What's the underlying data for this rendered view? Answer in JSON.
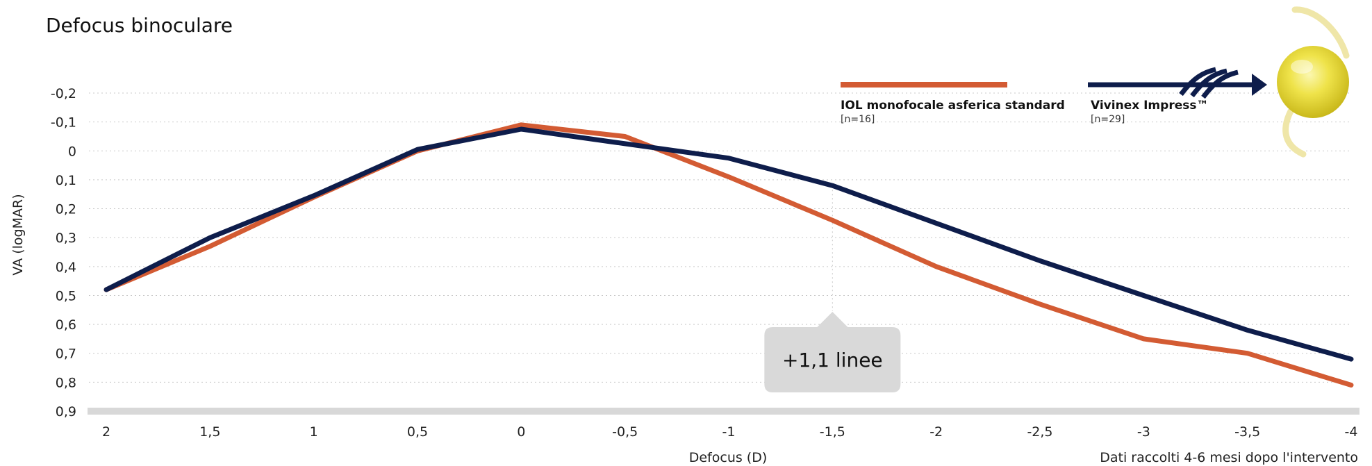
{
  "chart_data": {
    "type": "line",
    "title": "Defocus binoculare",
    "xlabel": "Defocus (D)",
    "ylabel": "VA (logMAR)",
    "note": "Dati raccolti 4-6 mesi dopo l'intervento",
    "x": [
      2,
      1.5,
      1,
      0.5,
      0,
      -0.5,
      -1,
      -1.5,
      -2,
      -2.5,
      -3,
      -3.5,
      -4
    ],
    "x_tick_labels": [
      "2",
      "1,5",
      "1",
      "0,5",
      "0",
      "-0,5",
      "-1",
      "-1,5",
      "-2",
      "-2,5",
      "-3",
      "-3,5",
      "-4"
    ],
    "y_tick_values": [
      -0.2,
      -0.1,
      0,
      0.1,
      0.2,
      0.3,
      0.4,
      0.5,
      0.6,
      0.7,
      0.8,
      0.9
    ],
    "y_tick_labels": [
      "-0,2",
      "-0,1",
      "0",
      "0,1",
      "0,2",
      "0,3",
      "0,4",
      "0,5",
      "0,6",
      "0,7",
      "0,8",
      "0,9"
    ],
    "xlim": [
      2,
      -4
    ],
    "ylim": [
      -0.2,
      0.9
    ],
    "y_inverted": true,
    "grid": true,
    "legend_position": "top-right",
    "series": [
      {
        "name": "IOL monofocale asferica standard",
        "n_label": "[n=16]",
        "color": "#d35b33",
        "values": [
          0.48,
          0.33,
          0.16,
          0.0,
          -0.09,
          -0.05,
          0.09,
          0.24,
          0.4,
          0.53,
          0.65,
          0.7,
          0.81
        ]
      },
      {
        "name": "Vivinex Impress™",
        "n_label": "[n=29]",
        "color": "#0e1d4b",
        "values": [
          0.48,
          0.3,
          0.155,
          -0.005,
          -0.075,
          -0.025,
          0.025,
          0.12,
          0.25,
          0.38,
          0.5,
          0.62,
          0.72
        ]
      }
    ],
    "annotations": [
      {
        "text": "+1,1 linee",
        "x": -1.5
      }
    ]
  }
}
